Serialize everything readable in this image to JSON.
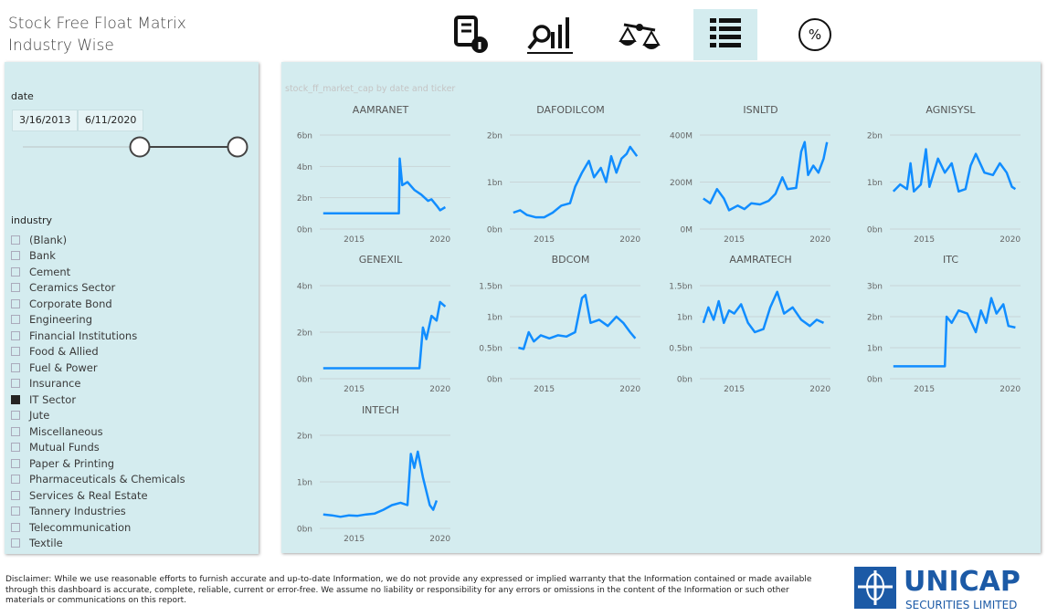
{
  "page": {
    "title": "Stock Free Float Matrix Industry Wise",
    "date_filter": {
      "label": "date",
      "start": "3/16/2013",
      "end": "6/11/2020"
    },
    "industry_filter": {
      "label": "industry",
      "items": [
        {
          "label": "(Blank)",
          "checked": false
        },
        {
          "label": "Bank",
          "checked": false
        },
        {
          "label": "Cement",
          "checked": false
        },
        {
          "label": "Ceramics Sector",
          "checked": false
        },
        {
          "label": "Corporate Bond",
          "checked": false
        },
        {
          "label": "Engineering",
          "checked": false
        },
        {
          "label": "Financial Institutions",
          "checked": false
        },
        {
          "label": "Food & Allied",
          "checked": false
        },
        {
          "label": "Fuel & Power",
          "checked": false
        },
        {
          "label": "Insurance",
          "checked": false
        },
        {
          "label": "IT Sector",
          "checked": true
        },
        {
          "label": "Jute",
          "checked": false
        },
        {
          "label": "Miscellaneous",
          "checked": false
        },
        {
          "label": "Mutual Funds",
          "checked": false
        },
        {
          "label": "Paper & Printing",
          "checked": false
        },
        {
          "label": "Pharmaceuticals & Chemicals",
          "checked": false
        },
        {
          "label": "Services & Real Estate",
          "checked": false
        },
        {
          "label": "Tannery Industries",
          "checked": false
        },
        {
          "label": "Telecommunication",
          "checked": false
        },
        {
          "label": "Textile",
          "checked": false
        }
      ]
    },
    "visual_title": "stock_ff_market_cap by date and ticker",
    "disclaimer": "Disclaimer: While we use reasonable efforts to furnish accurate and up-to-date Information, we do not provide any expressed or implied warranty that the Information contained or made available through this dashboard is accurate, complete, reliable, current or error-free.  We assume no liability or responsibility for any errors or omissions in the content of the Information or such other materials or communications on this report.",
    "logo": {
      "name": "UNICAP",
      "tagline": "SECURITIES LIMITED"
    }
  },
  "chart_data": [
    {
      "type": "line",
      "title": "AAMRANET",
      "color": "#118dff",
      "xlim": [
        2013,
        2020.6
      ],
      "xticks": [
        2015,
        2020
      ],
      "ylim": [
        0,
        6
      ],
      "yticks": [
        {
          "value": 0,
          "label": "0bn"
        },
        {
          "value": 2,
          "label": "2bn"
        },
        {
          "value": 4,
          "label": "4bn"
        },
        {
          "value": 6,
          "label": "6bn"
        }
      ],
      "x": [
        2013.2,
        2017.6,
        2017.65,
        2017.8,
        2018.1,
        2018.5,
        2018.9,
        2019.3,
        2019.5,
        2019.8,
        2020.0,
        2020.3
      ],
      "values": [
        1.0,
        1.0,
        4.5,
        2.8,
        3.0,
        2.5,
        2.2,
        1.8,
        1.9,
        1.5,
        1.2,
        1.4
      ]
    },
    {
      "type": "line",
      "title": "DAFODILCOM",
      "color": "#118dff",
      "xlim": [
        2013,
        2020.6
      ],
      "xticks": [
        2015,
        2020
      ],
      "ylim": [
        0,
        2
      ],
      "yticks": [
        {
          "value": 0,
          "label": "0bn"
        },
        {
          "value": 1,
          "label": "1bn"
        },
        {
          "value": 2,
          "label": "2bn"
        }
      ],
      "x": [
        2013.2,
        2013.6,
        2014.0,
        2014.5,
        2015.0,
        2015.5,
        2016.0,
        2016.5,
        2016.8,
        2017.2,
        2017.6,
        2017.9,
        2018.3,
        2018.6,
        2018.9,
        2019.2,
        2019.5,
        2019.8,
        2020.0,
        2020.4
      ],
      "values": [
        0.35,
        0.4,
        0.3,
        0.25,
        0.25,
        0.35,
        0.5,
        0.55,
        0.9,
        1.2,
        1.45,
        1.1,
        1.3,
        1.0,
        1.55,
        1.2,
        1.5,
        1.6,
        1.75,
        1.55
      ]
    },
    {
      "type": "line",
      "title": "ISNLTD",
      "color": "#118dff",
      "xlim": [
        2013,
        2020.6
      ],
      "xticks": [
        2015,
        2020
      ],
      "ylim": [
        0,
        400
      ],
      "yticks": [
        {
          "value": 0,
          "label": "0M"
        },
        {
          "value": 200,
          "label": "200M"
        },
        {
          "value": 400,
          "label": "400M"
        }
      ],
      "x": [
        2013.2,
        2013.6,
        2014.0,
        2014.4,
        2014.7,
        2015.2,
        2015.6,
        2016.0,
        2016.5,
        2017.0,
        2017.4,
        2017.8,
        2018.1,
        2018.6,
        2018.9,
        2019.1,
        2019.3,
        2019.6,
        2019.9,
        2020.2,
        2020.4
      ],
      "values": [
        130,
        110,
        170,
        130,
        80,
        100,
        85,
        110,
        105,
        120,
        150,
        220,
        170,
        175,
        330,
        370,
        230,
        270,
        240,
        300,
        370
      ]
    },
    {
      "type": "line",
      "title": "AGNISYSL",
      "color": "#118dff",
      "xlim": [
        2013,
        2020.6
      ],
      "xticks": [
        2015,
        2020
      ],
      "ylim": [
        0,
        2
      ],
      "yticks": [
        {
          "value": 0,
          "label": "0bn"
        },
        {
          "value": 1,
          "label": "1bn"
        },
        {
          "value": 2,
          "label": "2bn"
        }
      ],
      "x": [
        2013.2,
        2013.6,
        2014.0,
        2014.2,
        2014.4,
        2014.8,
        2015.1,
        2015.3,
        2015.8,
        2016.2,
        2016.6,
        2017.0,
        2017.4,
        2017.7,
        2018.0,
        2018.5,
        2019.0,
        2019.4,
        2019.8,
        2020.1,
        2020.3
      ],
      "values": [
        0.8,
        0.95,
        0.85,
        1.4,
        0.8,
        0.95,
        1.7,
        0.9,
        1.5,
        1.2,
        1.4,
        0.8,
        0.85,
        1.35,
        1.6,
        1.2,
        1.15,
        1.4,
        1.2,
        0.9,
        0.85
      ]
    },
    {
      "type": "line",
      "title": "GENEXIL",
      "color": "#118dff",
      "xlim": [
        2013,
        2020.6
      ],
      "xticks": [
        2015,
        2020
      ],
      "ylim": [
        0,
        4
      ],
      "yticks": [
        {
          "value": 0,
          "label": "0bn"
        },
        {
          "value": 2,
          "label": "2bn"
        },
        {
          "value": 4,
          "label": "4bn"
        }
      ],
      "x": [
        2013.2,
        2018.8,
        2019.0,
        2019.2,
        2019.5,
        2019.8,
        2020.0,
        2020.3
      ],
      "values": [
        0.45,
        0.45,
        2.2,
        1.7,
        2.7,
        2.5,
        3.3,
        3.1
      ]
    },
    {
      "type": "line",
      "title": "BDCOM",
      "color": "#118dff",
      "xlim": [
        2013,
        2020.6
      ],
      "xticks": [
        2015,
        2020
      ],
      "ylim": [
        0,
        1.5
      ],
      "yticks": [
        {
          "value": 0,
          "label": "0bn"
        },
        {
          "value": 0.5,
          "label": "0.5bn"
        },
        {
          "value": 1,
          "label": "1bn"
        },
        {
          "value": 1.5,
          "label": "1.5bn"
        }
      ],
      "x": [
        2013.5,
        2013.8,
        2014.1,
        2014.4,
        2014.8,
        2015.3,
        2015.8,
        2016.3,
        2016.8,
        2017.2,
        2017.4,
        2017.7,
        2018.2,
        2018.7,
        2019.2,
        2019.6,
        2020.0,
        2020.3
      ],
      "values": [
        0.5,
        0.48,
        0.75,
        0.6,
        0.7,
        0.65,
        0.7,
        0.68,
        0.75,
        1.3,
        1.35,
        0.9,
        0.95,
        0.85,
        1.0,
        0.9,
        0.75,
        0.65
      ]
    },
    {
      "type": "line",
      "title": "AAMRATECH",
      "color": "#118dff",
      "xlim": [
        2013,
        2020.6
      ],
      "xticks": [
        2015,
        2020
      ],
      "ylim": [
        0,
        1.5
      ],
      "yticks": [
        {
          "value": 0,
          "label": "0bn"
        },
        {
          "value": 0.5,
          "label": "0.5bn"
        },
        {
          "value": 1,
          "label": "1bn"
        },
        {
          "value": 1.5,
          "label": "1.5bn"
        }
      ],
      "x": [
        2013.2,
        2013.5,
        2013.8,
        2014.1,
        2014.4,
        2014.7,
        2015.0,
        2015.4,
        2015.8,
        2016.2,
        2016.7,
        2017.1,
        2017.5,
        2017.9,
        2018.4,
        2018.9,
        2019.4,
        2019.8,
        2020.2
      ],
      "values": [
        0.9,
        1.15,
        0.95,
        1.25,
        0.9,
        1.1,
        1.05,
        1.2,
        0.9,
        0.75,
        0.8,
        1.15,
        1.4,
        1.05,
        1.15,
        0.95,
        0.85,
        0.95,
        0.9
      ]
    },
    {
      "type": "line",
      "title": "ITC",
      "color": "#118dff",
      "xlim": [
        2013,
        2020.6
      ],
      "xticks": [
        2015,
        2020
      ],
      "ylim": [
        0,
        3
      ],
      "yticks": [
        {
          "value": 0,
          "label": "0bn"
        },
        {
          "value": 1,
          "label": "1bn"
        },
        {
          "value": 2,
          "label": "2bn"
        },
        {
          "value": 3,
          "label": "3bn"
        }
      ],
      "x": [
        2013.2,
        2016.2,
        2016.3,
        2016.6,
        2017.0,
        2017.5,
        2018.0,
        2018.3,
        2018.6,
        2018.9,
        2019.2,
        2019.6,
        2019.9,
        2020.3
      ],
      "values": [
        0.4,
        0.4,
        2.0,
        1.8,
        2.2,
        2.1,
        1.5,
        2.2,
        1.8,
        2.6,
        2.1,
        2.4,
        1.7,
        1.65
      ]
    },
    {
      "type": "line",
      "title": "INTECH",
      "color": "#118dff",
      "xlim": [
        2013,
        2020.6
      ],
      "xticks": [
        2015,
        2020
      ],
      "ylim": [
        0,
        2
      ],
      "yticks": [
        {
          "value": 0,
          "label": "0bn"
        },
        {
          "value": 1,
          "label": "1bn"
        },
        {
          "value": 2,
          "label": "2bn"
        }
      ],
      "x": [
        2013.2,
        2013.7,
        2014.2,
        2014.7,
        2015.2,
        2015.7,
        2016.2,
        2016.7,
        2017.2,
        2017.7,
        2018.1,
        2018.3,
        2018.5,
        2018.7,
        2019.0,
        2019.4,
        2019.6,
        2019.8
      ],
      "values": [
        0.3,
        0.28,
        0.25,
        0.28,
        0.27,
        0.3,
        0.32,
        0.4,
        0.5,
        0.55,
        0.5,
        1.6,
        1.3,
        1.65,
        1.1,
        0.5,
        0.4,
        0.6
      ]
    }
  ]
}
